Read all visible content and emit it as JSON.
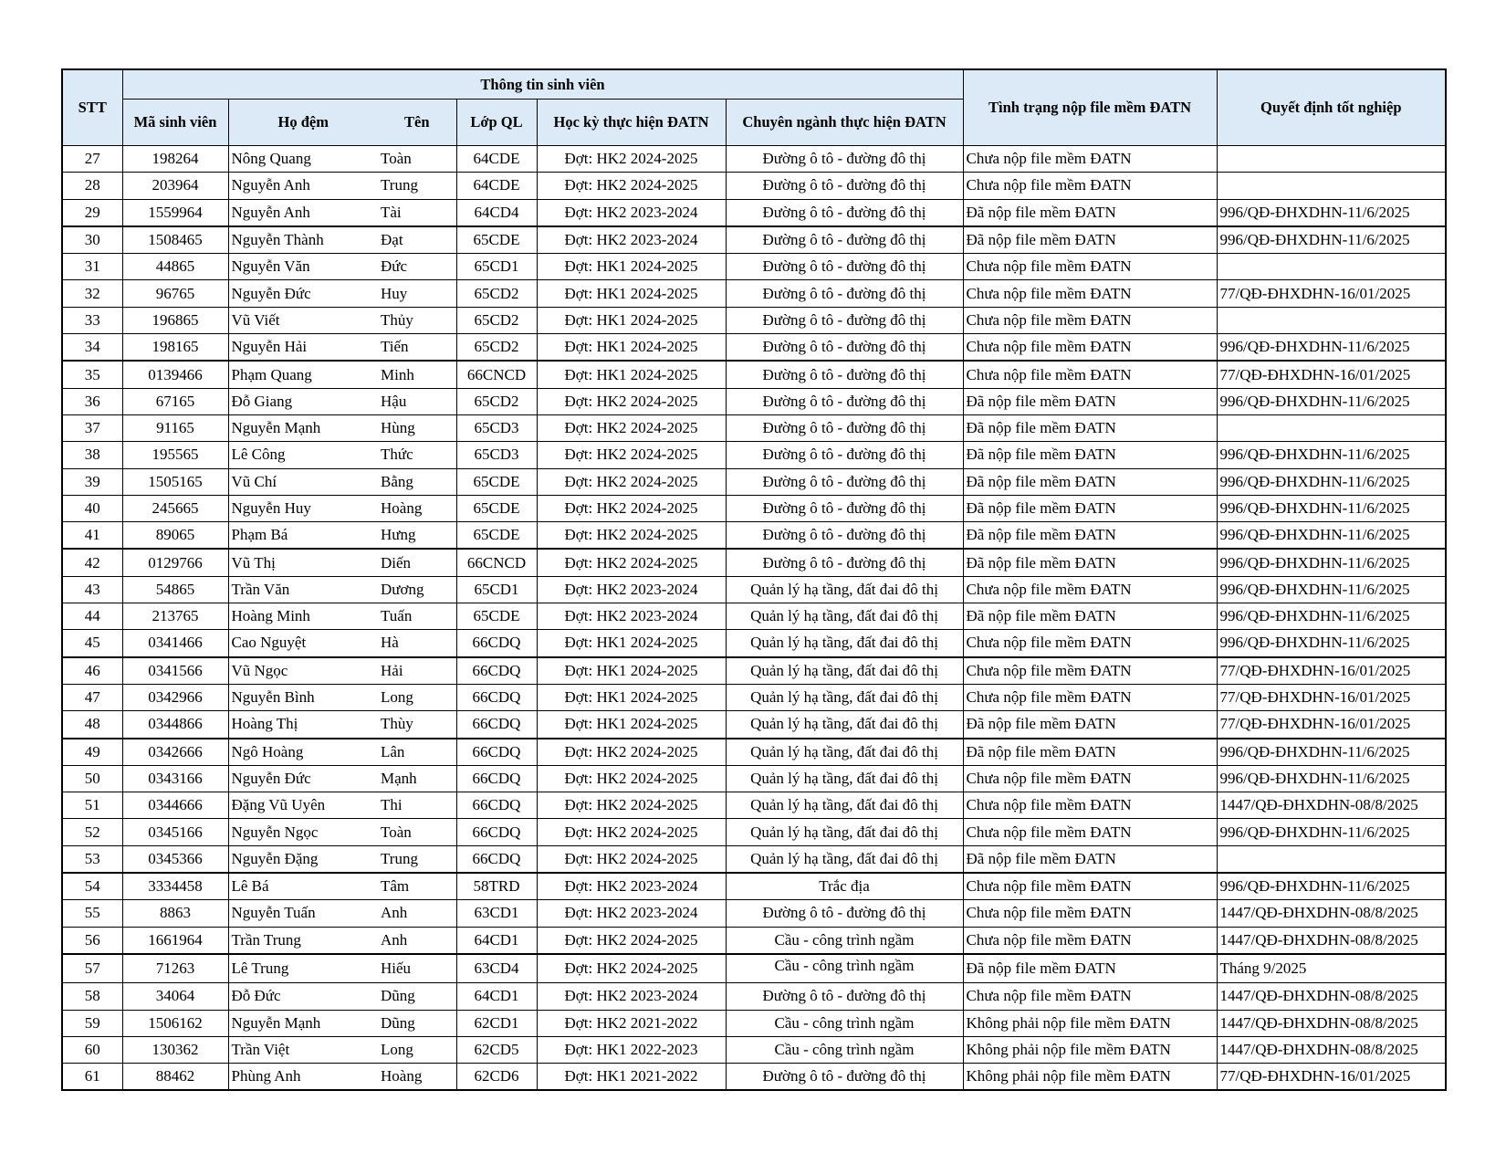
{
  "header": {
    "stt": "STT",
    "group": "Thông tin sinh viên",
    "ma_sv": "Mã sinh viên",
    "ho_dem": "Họ đệm",
    "ten": "Tên",
    "lop": "Lớp QL",
    "hoc_ky": "Học kỳ thực hiện ĐATN",
    "chuyen_nganh": "Chuyên ngành thực hiện ĐATN",
    "tinh_trang": "Tình trạng nộp file mềm ĐATN",
    "quyet_dinh": "Quyết định tốt nghiệp"
  },
  "rows": [
    [
      "27",
      "198264",
      "Nông Quang",
      "Toàn",
      "64CDE",
      "Đợt: HK2 2024-2025",
      "Đường ô tô - đường đô thị",
      "Chưa nộp file mềm ĐATN",
      ""
    ],
    [
      "28",
      "203964",
      "Nguyễn Anh",
      "Trung",
      "64CDE",
      "Đợt: HK2 2024-2025",
      "Đường ô tô - đường đô thị",
      "Chưa nộp file mềm ĐATN",
      ""
    ],
    [
      "29",
      "1559964",
      "Nguyễn Anh",
      "Tài",
      "64CD4",
      "Đợt: HK2 2023-2024",
      "Đường ô tô - đường đô thị",
      "Đã nộp file mềm ĐATN",
      "996/QĐ-ĐHXDHN-11/6/2025"
    ],
    [
      "30",
      "1508465",
      "Nguyễn Thành",
      "Đạt",
      "65CDE",
      "Đợt: HK2 2023-2024",
      "Đường ô tô - đường đô thị",
      "Đã nộp file mềm ĐATN",
      "996/QĐ-ĐHXDHN-11/6/2025"
    ],
    [
      "31",
      "44865",
      "Nguyễn Văn",
      "Đức",
      "65CD1",
      "Đợt: HK1 2024-2025",
      "Đường ô tô - đường đô thị",
      "Chưa nộp file mềm ĐATN",
      ""
    ],
    [
      "32",
      "96765",
      "Nguyễn Đức",
      "Huy",
      "65CD2",
      "Đợt: HK1 2024-2025",
      "Đường ô tô - đường đô thị",
      "Chưa nộp file mềm ĐATN",
      "77/QĐ-ĐHXDHN-16/01/2025"
    ],
    [
      "33",
      "196865",
      "Vũ Viết",
      "Thủy",
      "65CD2",
      "Đợt: HK1 2024-2025",
      "Đường ô tô - đường đô thị",
      "Chưa nộp file mềm ĐATN",
      ""
    ],
    [
      "34",
      "198165",
      "Nguyễn Hải",
      "Tiến",
      "65CD2",
      "Đợt: HK1 2024-2025",
      "Đường ô tô - đường đô thị",
      "Chưa nộp file mềm ĐATN",
      "996/QĐ-ĐHXDHN-11/6/2025"
    ],
    [
      "35",
      "0139466",
      "Phạm Quang",
      "Minh",
      "66CNCD",
      "Đợt: HK1 2024-2025",
      "Đường ô tô - đường đô thị",
      "Chưa nộp file mềm ĐATN",
      "77/QĐ-ĐHXDHN-16/01/2025"
    ],
    [
      "36",
      "67165",
      "Đỗ Giang",
      "Hậu",
      "65CD2",
      "Đợt: HK2 2024-2025",
      "Đường ô tô - đường đô thị",
      "Đã nộp file mềm ĐATN",
      "996/QĐ-ĐHXDHN-11/6/2025"
    ],
    [
      "37",
      "91165",
      "Nguyễn Mạnh",
      "Hùng",
      "65CD3",
      "Đợt: HK2 2024-2025",
      "Đường ô tô - đường đô thị",
      "Đã nộp file mềm ĐATN",
      ""
    ],
    [
      "38",
      "195565",
      "Lê Công",
      "Thức",
      "65CD3",
      "Đợt: HK2 2024-2025",
      "Đường ô tô - đường đô thị",
      "Đã nộp file mềm ĐATN",
      "996/QĐ-ĐHXDHN-11/6/2025"
    ],
    [
      "39",
      "1505165",
      "Vũ Chí",
      "Bằng",
      "65CDE",
      "Đợt: HK2 2024-2025",
      "Đường ô tô - đường đô thị",
      "Đã nộp file mềm ĐATN",
      "996/QĐ-ĐHXDHN-11/6/2025"
    ],
    [
      "40",
      "245665",
      "Nguyễn Huy",
      "Hoàng",
      "65CDE",
      "Đợt: HK2 2024-2025",
      "Đường ô tô - đường đô thị",
      "Đã nộp file mềm ĐATN",
      "996/QĐ-ĐHXDHN-11/6/2025"
    ],
    [
      "41",
      "89065",
      "Phạm Bá",
      "Hưng",
      "65CDE",
      "Đợt: HK2 2024-2025",
      "Đường ô tô - đường đô thị",
      "Đã nộp file mềm ĐATN",
      "996/QĐ-ĐHXDHN-11/6/2025"
    ],
    [
      "42",
      "0129766",
      "Vũ Thị",
      "Diến",
      "66CNCD",
      "Đợt: HK2 2024-2025",
      "Đường ô tô - đường đô thị",
      "Đã nộp file mềm ĐATN",
      "996/QĐ-ĐHXDHN-11/6/2025"
    ],
    [
      "43",
      "54865",
      "Trần Văn",
      "Dương",
      "65CD1",
      "Đợt: HK2 2023-2024",
      "Quản lý hạ tầng, đất đai đô thị",
      "Chưa nộp file mềm ĐATN",
      "996/QĐ-ĐHXDHN-11/6/2025"
    ],
    [
      "44",
      "213765",
      "Hoàng Minh",
      "Tuấn",
      "65CDE",
      "Đợt: HK2 2023-2024",
      "Quản lý hạ tầng, đất đai đô thị",
      "Đã nộp file mềm ĐATN",
      "996/QĐ-ĐHXDHN-11/6/2025"
    ],
    [
      "45",
      "0341466",
      "Cao Nguyệt",
      "Hà",
      "66CDQ",
      "Đợt: HK1 2024-2025",
      "Quản lý hạ tầng, đất đai đô thị",
      "Chưa nộp file mềm ĐATN",
      "996/QĐ-ĐHXDHN-11/6/2025"
    ],
    [
      "46",
      "0341566",
      "Vũ Ngọc",
      "Hải",
      "66CDQ",
      "Đợt: HK1 2024-2025",
      "Quản lý hạ tầng, đất đai đô thị",
      "Chưa nộp file mềm ĐATN",
      "77/QĐ-ĐHXDHN-16/01/2025"
    ],
    [
      "47",
      "0342966",
      "Nguyễn Bình",
      "Long",
      "66CDQ",
      "Đợt: HK1 2024-2025",
      "Quản lý hạ tầng, đất đai đô thị",
      "Chưa nộp file mềm ĐATN",
      "77/QĐ-ĐHXDHN-16/01/2025"
    ],
    [
      "48",
      "0344866",
      "Hoàng Thị",
      "Thùy",
      "66CDQ",
      "Đợt: HK1 2024-2025",
      "Quản lý hạ tầng, đất đai đô thị",
      "Đã nộp file mềm ĐATN",
      "77/QĐ-ĐHXDHN-16/01/2025"
    ],
    [
      "49",
      "0342666",
      "Ngô Hoàng",
      "Lân",
      "66CDQ",
      "Đợt: HK2 2024-2025",
      "Quản lý hạ tầng, đất đai đô thị",
      "Đã nộp file mềm ĐATN",
      "996/QĐ-ĐHXDHN-11/6/2025"
    ],
    [
      "50",
      "0343166",
      "Nguyễn Đức",
      "Mạnh",
      "66CDQ",
      "Đợt: HK2 2024-2025",
      "Quản lý hạ tầng, đất đai đô thị",
      "Chưa nộp file mềm ĐATN",
      "996/QĐ-ĐHXDHN-11/6/2025"
    ],
    [
      "51",
      "0344666",
      "Đặng Vũ Uyên",
      "Thi",
      "66CDQ",
      "Đợt: HK2 2024-2025",
      "Quản lý hạ tầng, đất đai đô thị",
      "Chưa nộp file mềm ĐATN",
      "1447/QĐ-ĐHXDHN-08/8/2025"
    ],
    [
      "52",
      "0345166",
      "Nguyễn Ngọc",
      "Toàn",
      "66CDQ",
      "Đợt: HK2 2024-2025",
      "Quản lý hạ tầng, đất đai đô thị",
      "Chưa nộp file mềm ĐATN",
      "996/QĐ-ĐHXDHN-11/6/2025"
    ],
    [
      "53",
      "0345366",
      "Nguyễn Đặng",
      "Trung",
      "66CDQ",
      "Đợt: HK2 2024-2025",
      "Quản lý hạ tầng, đất đai đô thị",
      "Đã nộp file mềm ĐATN",
      ""
    ],
    [
      "54",
      "3334458",
      "Lê Bá",
      "Tâm",
      "58TRD",
      "Đợt: HK2 2023-2024",
      "Trắc địa",
      "Chưa nộp file mềm ĐATN",
      "996/QĐ-ĐHXDHN-11/6/2025"
    ],
    [
      "55",
      "8863",
      "Nguyễn Tuấn",
      "Anh",
      "63CD1",
      "Đợt: HK2 2023-2024",
      "Đường ô tô - đường đô thị",
      "Chưa nộp file mềm ĐATN",
      "1447/QĐ-ĐHXDHN-08/8/2025"
    ],
    [
      "56",
      "1661964",
      "Trần Trung",
      "Anh",
      "64CD1",
      "Đợt: HK2 2024-2025",
      "Cầu - công trình ngầm",
      "Chưa nộp file mềm ĐATN",
      "1447/QĐ-ĐHXDHN-08/8/2025"
    ],
    [
      "57",
      "71263",
      "Lê Trung",
      "Hiếu",
      "63CD4",
      "Đợt: HK2 2024-2025",
      "Cầu - công trình ngầm",
      "Đã nộp file mềm ĐATN",
      "Tháng 9/2025"
    ],
    [
      "58",
      "34064",
      "Đỗ Đức",
      "Dũng",
      "64CD1",
      "Đợt: HK2 2023-2024",
      "Đường ô tô - đường đô thị",
      "Chưa nộp file mềm ĐATN",
      "1447/QĐ-ĐHXDHN-08/8/2025"
    ],
    [
      "59",
      "1506162",
      "Nguyễn Mạnh",
      "Dũng",
      "62CD1",
      "Đợt: HK2 2021-2022",
      "Cầu - công trình ngầm",
      "Không phải nộp file mềm ĐATN",
      "1447/QĐ-ĐHXDHN-08/8/2025"
    ],
    [
      "60",
      "130362",
      "Trần Việt",
      "Long",
      "62CD5",
      "Đợt: HK1 2022-2023",
      "Cầu - công trình ngầm",
      "Không phải nộp file mềm ĐATN",
      "1447/QĐ-ĐHXDHN-08/8/2025"
    ],
    [
      "61",
      "88462",
      "Phùng Anh",
      "Hoàng",
      "62CD6",
      "Đợt: HK1 2021-2022",
      "Đường ô tô - đường đô thị",
      "Không phải nộp file mềm ĐATN",
      "77/QĐ-ĐHXDHN-16/01/2025"
    ]
  ]
}
